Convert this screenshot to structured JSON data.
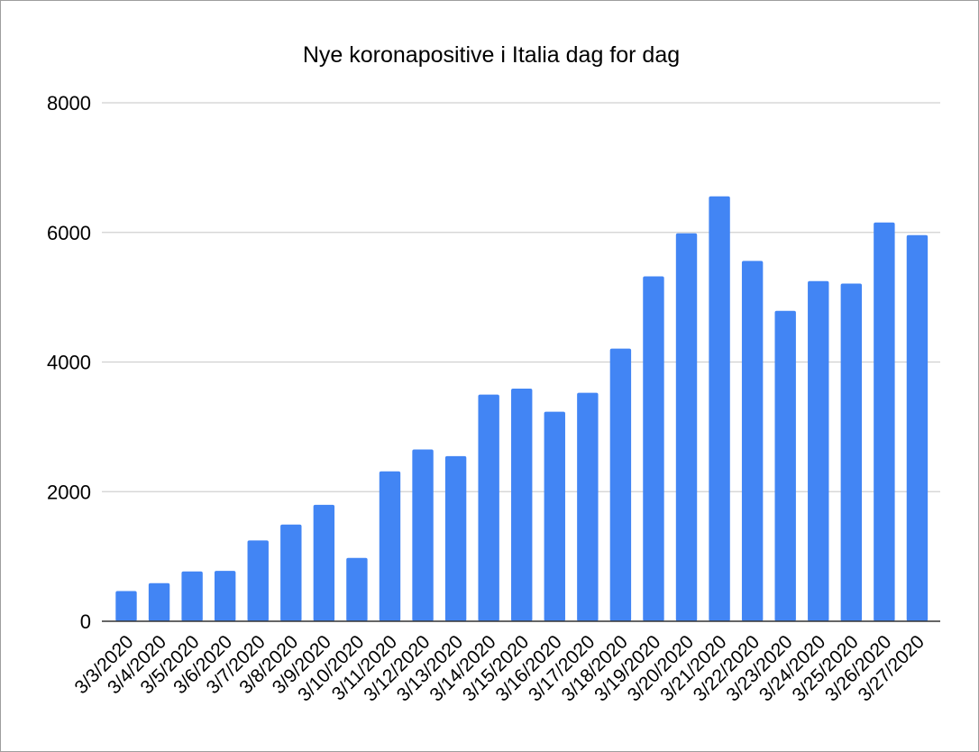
{
  "chart_data": {
    "type": "bar",
    "title": "Nye koronapositive i Italia dag for dag",
    "xlabel": "",
    "ylabel": "",
    "categories": [
      "3/3/2020",
      "3/4/2020",
      "3/5/2020",
      "3/6/2020",
      "3/7/2020",
      "3/8/2020",
      "3/9/2020",
      "3/10/2020",
      "3/11/2020",
      "3/12/2020",
      "3/13/2020",
      "3/14/2020",
      "3/15/2020",
      "3/16/2020",
      "3/17/2020",
      "3/18/2020",
      "3/19/2020",
      "3/20/2020",
      "3/21/2020",
      "3/22/2020",
      "3/23/2020",
      "3/24/2020",
      "3/25/2020",
      "3/26/2020",
      "3/27/2020"
    ],
    "values": [
      466,
      587,
      769,
      778,
      1247,
      1492,
      1797,
      977,
      2313,
      2651,
      2547,
      3497,
      3590,
      3233,
      3526,
      4207,
      5322,
      5986,
      6557,
      5560,
      4789,
      5249,
      5210,
      6153,
      5959
    ],
    "ylim": [
      0,
      8000
    ],
    "yticks": [
      0,
      2000,
      4000,
      6000,
      8000
    ],
    "grid": true,
    "legend": "none",
    "bar_color": "#4285F4",
    "gridline_color": "#d0d0d0",
    "axis_color": "#333333"
  }
}
